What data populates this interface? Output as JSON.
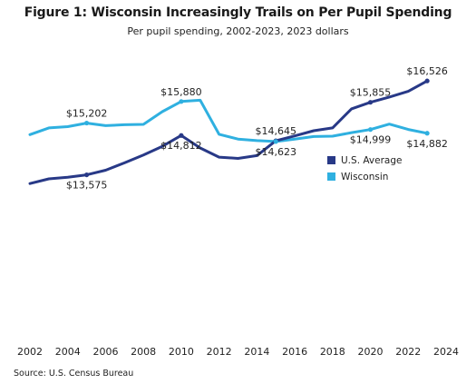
{
  "title": "Figure 1: Wisconsin Increasingly Trails on Per Pupil Spending",
  "subtitle": "Per pupil spending, 2002-2023, 2023 dollars",
  "source": "Source: U.S. Census Bureau",
  "colors": {
    "us": "#283987",
    "wisconsin": "#2fb0e0"
  },
  "chart_data": {
    "type": "line",
    "x": [
      2002,
      2003,
      2004,
      2005,
      2006,
      2007,
      2008,
      2009,
      2010,
      2011,
      2012,
      2013,
      2014,
      2015,
      2016,
      2017,
      2018,
      2019,
      2020,
      2021,
      2022,
      2023
    ],
    "series": [
      {
        "name": "U.S. Average",
        "values": [
          13300,
          13450,
          13500,
          13575,
          13720,
          13950,
          14200,
          14470,
          14812,
          14420,
          14130,
          14090,
          14180,
          14645,
          14800,
          14960,
          15050,
          15650,
          15855,
          16020,
          16200,
          16526
        ]
      },
      {
        "name": "Wisconsin",
        "values": [
          14840,
          15050,
          15090,
          15202,
          15120,
          15150,
          15160,
          15560,
          15880,
          15920,
          14850,
          14700,
          14650,
          14623,
          14700,
          14780,
          14790,
          14900,
          14999,
          15170,
          15000,
          14882
        ]
      }
    ],
    "data_labels": [
      {
        "series": 0,
        "x": 2005,
        "text": "$13,575",
        "pos": "below"
      },
      {
        "series": 0,
        "x": 2010,
        "text": "$14,812",
        "pos": "below"
      },
      {
        "series": 0,
        "x": 2015,
        "text": "$14,645",
        "pos": "above"
      },
      {
        "series": 0,
        "x": 2020,
        "text": "$15,855",
        "pos": "above"
      },
      {
        "series": 0,
        "x": 2023,
        "text": "$16,526",
        "pos": "above"
      },
      {
        "series": 1,
        "x": 2005,
        "text": "$15,202",
        "pos": "above"
      },
      {
        "series": 1,
        "x": 2010,
        "text": "$15,880",
        "pos": "above"
      },
      {
        "series": 1,
        "x": 2015,
        "text": "$14,623",
        "pos": "below"
      },
      {
        "series": 1,
        "x": 2020,
        "text": "$14,999",
        "pos": "below"
      },
      {
        "series": 1,
        "x": 2023,
        "text": "$14,882",
        "pos": "below"
      }
    ],
    "xticks": [
      "2002",
      "2004",
      "2006",
      "2008",
      "2010",
      "2012",
      "2014",
      "2016",
      "2018",
      "2020",
      "2022",
      "2024"
    ],
    "xlabel": "",
    "ylabel": "",
    "ylim": [
      8200,
      17700
    ],
    "grid": false,
    "y_axis_visible": false,
    "legend": {
      "position": "right",
      "entries": [
        "U.S. Average",
        "Wisconsin"
      ]
    }
  }
}
